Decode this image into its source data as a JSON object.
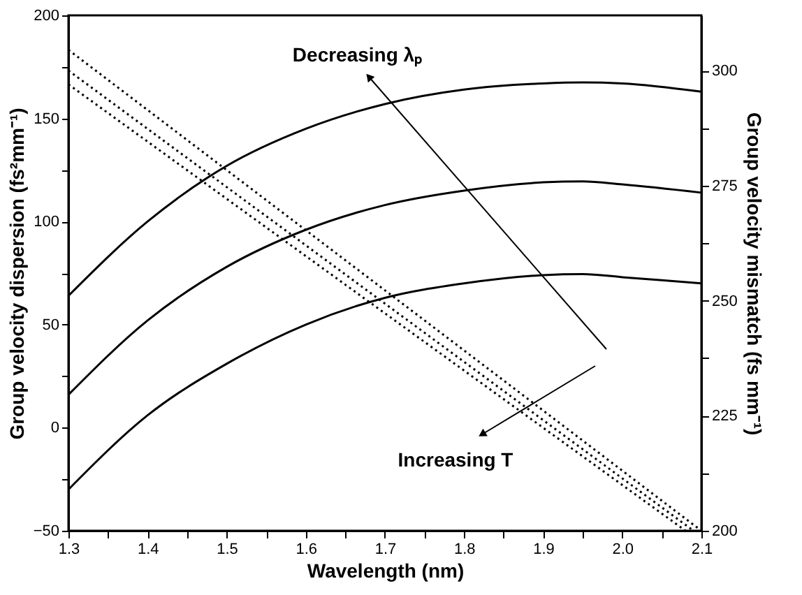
{
  "chart_data": {
    "type": "line",
    "xlabel": "Wavelength (nm)",
    "ylabel": "Group velocity dispersion (fs²mm⁻¹)",
    "y2label": "Group velocity mismatch (fs mm⁻¹)",
    "annotations": [
      "Decreasing λₚ",
      "Increasing T"
    ],
    "xlim": [
      1.3,
      2.1
    ],
    "xticks": [
      1.3,
      {
        "value": 1.35,
        "label": null
      },
      1.4,
      {
        "value": 1.45,
        "label": null
      },
      1.5,
      {
        "value": 1.55,
        "label": null
      },
      1.6,
      {
        "value": 1.65,
        "label": null
      },
      1.7,
      {
        "value": 1.75,
        "label": null
      },
      1.8,
      {
        "value": 1.85,
        "label": null
      },
      1.9,
      {
        "value": 1.95,
        "label": null
      },
      {
        "value": 2.0,
        "label": "2.0"
      },
      {
        "value": 2.05,
        "label": null
      },
      2.1
    ],
    "ylim": [
      -50,
      200
    ],
    "yticks": [
      -50,
      {
        "value": -25,
        "label": null
      },
      0,
      {
        "value": 25,
        "label": null
      },
      50,
      {
        "value": 75,
        "label": null
      },
      100,
      {
        "value": 125,
        "label": null
      },
      150,
      {
        "value": 175,
        "label": null
      },
      200
    ],
    "y2lim": [
      200,
      312
    ],
    "y2ticks": [
      200,
      {
        "value": 212.5,
        "label": null
      },
      225,
      {
        "value": 237.5,
        "label": null
      },
      250,
      {
        "value": 262.5,
        "label": null
      },
      275,
      {
        "value": 287.5,
        "label": null
      },
      300
    ],
    "grid": false,
    "legend": false,
    "marker": "none",
    "series": [
      {
        "color": "#000000",
        "line_style": "solid",
        "x": [
          1.3,
          1.4,
          1.5,
          1.6,
          1.7,
          1.8,
          1.9,
          1.95,
          2.0,
          2.1
        ],
        "values": [
          64,
          100,
          127,
          145,
          157,
          164,
          167,
          167.5,
          167,
          163
        ]
      },
      {
        "color": "#000000",
        "line_style": "solid",
        "x": [
          1.3,
          1.4,
          1.5,
          1.6,
          1.7,
          1.8,
          1.9,
          1.95,
          2.0,
          2.1
        ],
        "values": [
          16,
          52,
          78,
          96,
          108,
          115,
          119,
          119.5,
          118,
          114
        ]
      },
      {
        "color": "#000000",
        "line_style": "solid",
        "x": [
          1.3,
          1.4,
          1.5,
          1.6,
          1.7,
          1.8,
          1.9,
          1.95,
          2.0,
          2.1
        ],
        "values": [
          -30,
          6,
          31,
          50,
          63,
          70,
          74,
          74.5,
          73,
          70
        ]
      },
      {
        "color": "#000000",
        "line_style": "dotted",
        "axis": "y2",
        "x": [
          1.3,
          2.1
        ],
        "values": [
          304.5,
          200
        ]
      },
      {
        "color": "#000000",
        "line_style": "dotted",
        "axis": "y2",
        "x": [
          1.3,
          2.09
        ],
        "values": [
          300,
          200
        ]
      },
      {
        "color": "#000000",
        "line_style": "dotted",
        "axis": "y2",
        "x": [
          1.3,
          2.08
        ],
        "values": [
          297,
          200
        ]
      }
    ]
  }
}
